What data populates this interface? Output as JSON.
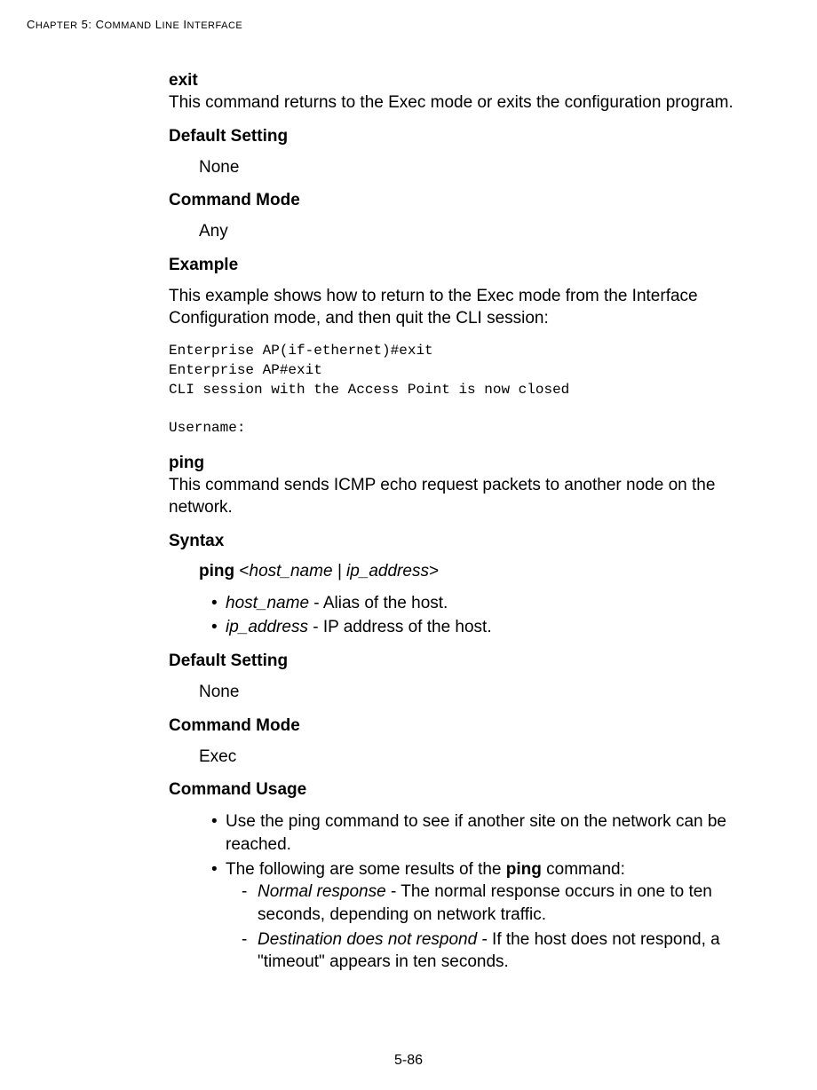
{
  "header": "Chapter 5: Command Line Interface",
  "exit": {
    "title": "exit",
    "desc": "This command returns to the Exec mode or exits the configuration program.",
    "defaultSetting": {
      "heading": "Default Setting",
      "value": "None"
    },
    "commandMode": {
      "heading": "Command Mode",
      "value": "Any"
    },
    "example": {
      "heading": "Example",
      "intro": "This example shows how to return to the Exec mode from the Interface Configuration mode, and then quit the CLI session:",
      "code": "Enterprise AP(if-ethernet)#exit\nEnterprise AP#exit\nCLI session with the Access Point is now closed\n\nUsername:"
    }
  },
  "ping": {
    "title": "ping",
    "desc": "This command sends ICMP echo request packets to another node on the network.",
    "syntax": {
      "heading": "Syntax",
      "cmd": "ping",
      "args": "<host_name | ip_address>",
      "params": [
        {
          "name": "host_name",
          "desc": " - Alias of the host."
        },
        {
          "name": "ip_address",
          "desc": " - IP address of the host."
        }
      ]
    },
    "defaultSetting": {
      "heading": "Default Setting",
      "value": "None"
    },
    "commandMode": {
      "heading": "Command Mode",
      "value": "Exec"
    },
    "usage": {
      "heading": "Command Usage",
      "items": [
        {
          "text": "Use the ping command to see if another site on the network can be reached."
        },
        {
          "prefix": "The following are some results of the ",
          "bold": "ping",
          "suffix": " command:",
          "subs": [
            {
              "name": "Normal response",
              "desc": " - The normal response occurs in one to ten seconds, depending on network traffic."
            },
            {
              "name": "Destination does not respond",
              "desc": " - If the host does not respond, a \"timeout\" appears in ten seconds."
            }
          ]
        }
      ]
    }
  },
  "footer": "5-86"
}
